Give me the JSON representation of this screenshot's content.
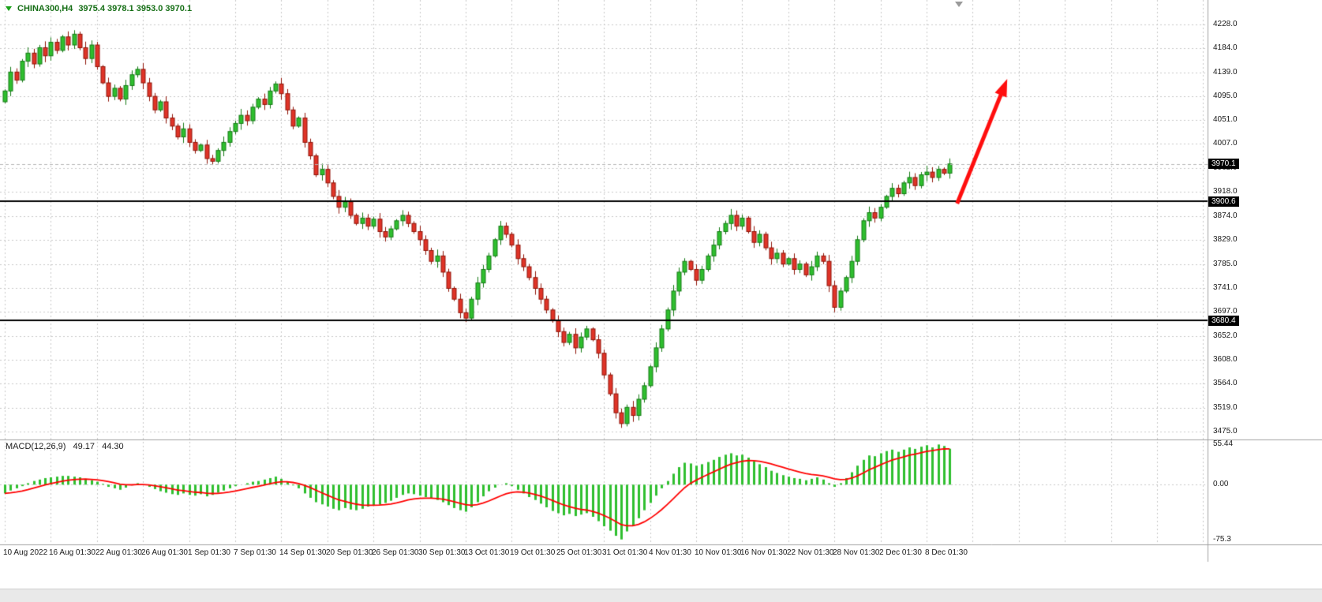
{
  "header": {
    "symbol_period": "CHINA300,H4",
    "ohlc_values": "3975.4 3978.1 3953.0 3970.1"
  },
  "colors": {
    "bull_fill": "#2fbf2f",
    "bull_stroke": "#157a15",
    "bear_fill": "#e03428",
    "bear_stroke": "#8f1408",
    "grid": "#c8c8c8",
    "separator": "#a0a0a0",
    "hline": "#000000",
    "bid_line": "#b4b4b4",
    "histogram": "#2fbf2f",
    "signal": "#ff0000",
    "arrow": "#ff0e0e",
    "badge_bg": "#000000",
    "badge_text": "#ffffff",
    "axis_text": "#1b1b1b"
  },
  "chart_data": {
    "type": "candlestick",
    "title": "CHINA300,H4",
    "timeframe": "H4",
    "main": {
      "price_max": 4273.2,
      "price_min": 3460.6,
      "grid_prices": [
        4228.0,
        4184.0,
        4139.0,
        4095.0,
        4051.0,
        4007.0,
        3962.0,
        3918.0,
        3874.0,
        3829.0,
        3785.0,
        3741.0,
        3697.0,
        3652.0,
        3608.0,
        3564.0,
        3519.0,
        3475.0
      ],
      "first_open": 4085,
      "closes": [
        4105,
        4140,
        4125,
        4160,
        4175,
        4155,
        4185,
        4170,
        4195,
        4180,
        4205,
        4190,
        4210,
        4185,
        4165,
        4190,
        4150,
        4120,
        4095,
        4110,
        4090,
        4115,
        4135,
        4145,
        4120,
        4095,
        4070,
        4085,
        4055,
        4040,
        4020,
        4035,
        4010,
        3995,
        4005,
        3980,
        3975,
        3995,
        4010,
        4030,
        4045,
        4060,
        4050,
        4075,
        4090,
        4080,
        4105,
        4118,
        4100,
        4070,
        4040,
        4055,
        4010,
        3985,
        3950,
        3960,
        3935,
        3910,
        3890,
        3900,
        3875,
        3860,
        3870,
        3855,
        3868,
        3845,
        3835,
        3850,
        3865,
        3875,
        3860,
        3845,
        3830,
        3810,
        3790,
        3800,
        3770,
        3740,
        3720,
        3695,
        3685,
        3720,
        3750,
        3775,
        3800,
        3830,
        3855,
        3840,
        3820,
        3795,
        3780,
        3760,
        3740,
        3720,
        3700,
        3680,
        3660,
        3640,
        3655,
        3630,
        3650,
        3665,
        3645,
        3620,
        3580,
        3545,
        3510,
        3490,
        3520,
        3505,
        3535,
        3560,
        3595,
        3630,
        3665,
        3700,
        3735,
        3770,
        3790,
        3775,
        3755,
        3775,
        3800,
        3820,
        3845,
        3860,
        3875,
        3855,
        3870,
        3845,
        3825,
        3840,
        3815,
        3795,
        3805,
        3785,
        3795,
        3775,
        3785,
        3765,
        3780,
        3800,
        3790,
        3745,
        3705,
        3735,
        3760,
        3790,
        3830,
        3865,
        3880,
        3870,
        3890,
        3910,
        3925,
        3915,
        3935,
        3945,
        3930,
        3950,
        3955,
        3945,
        3960,
        3953,
        3970.1
      ],
      "hlines": [
        3900.6,
        3680.4
      ],
      "bid": 3970.1
    },
    "macd": {
      "label": "MACD(12,26,9)",
      "macd_value": "49.17",
      "signal_value": "44.30",
      "ymax": 60.8,
      "ymin": -81.8,
      "axis": [
        {
          "value": 55.44,
          "label": "55.44"
        },
        {
          "value": 0,
          "label": "0.00"
        },
        {
          "value": -75.3,
          "label": "-75.3"
        }
      ],
      "histogram": [
        -12,
        -8,
        -5,
        -2,
        2,
        5,
        7,
        9,
        10,
        11,
        12,
        12,
        11,
        10,
        8,
        6,
        4,
        1,
        -3,
        -5,
        -7,
        -4,
        -1,
        2,
        0,
        -3,
        -6,
        -9,
        -11,
        -13,
        -14,
        -12,
        -14,
        -15,
        -13,
        -16,
        -14,
        -11,
        -8,
        -5,
        -2,
        0,
        2,
        4,
        5,
        7,
        9,
        11,
        8,
        4,
        -1,
        -5,
        -12,
        -18,
        -24,
        -27,
        -30,
        -33,
        -35,
        -32,
        -34,
        -35,
        -33,
        -30,
        -28,
        -27,
        -25,
        -22,
        -18,
        -14,
        -12,
        -13,
        -15,
        -17,
        -19,
        -21,
        -24,
        -28,
        -32,
        -35,
        -37,
        -31,
        -24,
        -16,
        -9,
        -4,
        0,
        2,
        -2,
        -7,
        -12,
        -17,
        -21,
        -26,
        -31,
        -36,
        -39,
        -42,
        -40,
        -43,
        -41,
        -39,
        -44,
        -50,
        -57,
        -63,
        -70,
        -75,
        -64,
        -56,
        -46,
        -35,
        -25,
        -15,
        -5,
        5,
        15,
        24,
        30,
        29,
        26,
        28,
        31,
        34,
        38,
        41,
        43,
        40,
        41,
        37,
        32,
        28,
        24,
        19,
        16,
        13,
        11,
        9,
        8,
        6,
        8,
        10,
        7,
        2,
        -3,
        2,
        9,
        17,
        26,
        34,
        40,
        39,
        43,
        46,
        48,
        45,
        48,
        51,
        49,
        52,
        54,
        51,
        55,
        53,
        49.17
      ]
    },
    "x_axis": {
      "candles_per_tick": 8,
      "labels": [
        "10 Aug 2022",
        "16 Aug 01:30",
        "22 Aug 01:30",
        "26 Aug 01:30",
        "1 Sep 01:30",
        "7 Sep 01:30",
        "14 Sep 01:30",
        "20 Sep 01:30",
        "26 Sep 01:30",
        "30 Sep 01:30",
        "13 Oct 01:30",
        "19 Oct 01:30",
        "25 Oct 01:30",
        "31 Oct 01:30",
        "4 Nov 01:30",
        "10 Nov 01:30",
        "16 Nov 01:30",
        "22 Nov 01:30",
        "28 Nov 01:30",
        "2 Dec 01:30",
        "8 Dec 01:30"
      ]
    },
    "annotations": [
      {
        "type": "arrow",
        "t1": 165.3,
        "p1": 3896.8,
        "t2": 174.0,
        "p2": 4127.3
      }
    ]
  }
}
